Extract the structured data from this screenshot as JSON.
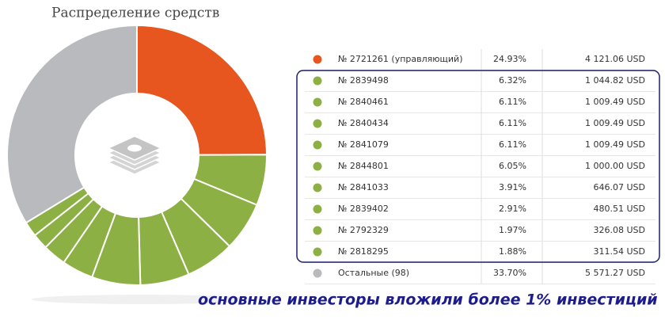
{
  "chart_data": {
    "type": "pie",
    "donut": true,
    "title": "Распределение средств",
    "categories": [
      "№ 2721261 (управляющий)",
      "№ 2839498",
      "№ 2840461",
      "№ 2840434",
      "№ 2841079",
      "№ 2844801",
      "№ 2841033",
      "№ 2839402",
      "№ 2792329",
      "№ 2818295",
      "Остальные (98)"
    ],
    "values": [
      24.93,
      6.32,
      6.11,
      6.11,
      6.11,
      6.05,
      3.91,
      2.91,
      1.97,
      1.88,
      33.7
    ],
    "value_labels": [
      "24.93%",
      "6.32%",
      "6.11%",
      "6.11%",
      "6.11%",
      "6.05%",
      "3.91%",
      "2.91%",
      "1.97%",
      "1.88%",
      "33.70%"
    ],
    "amounts": [
      "4 121.06 USD",
      "1 044.82 USD",
      "1 009.49 USD",
      "1 009.49 USD",
      "1 009.49 USD",
      "1 000.00 USD",
      "646.07 USD",
      "480.51 USD",
      "326.08 USD",
      "311.54 USD",
      "5 571.27 USD"
    ],
    "colors": [
      "#e8561f",
      "#8db045",
      "#8db045",
      "#8db045",
      "#8db045",
      "#8db045",
      "#8db045",
      "#8db045",
      "#8db045",
      "#8db045",
      "#b9babd"
    ],
    "annotation": "основные инвесторы вложили более 1% инвестиций"
  }
}
